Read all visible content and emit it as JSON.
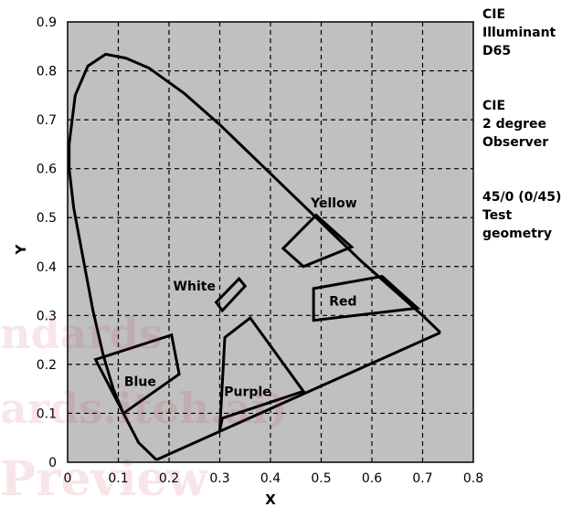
{
  "chart_data": {
    "type": "scatter",
    "title": "",
    "xlabel": "X",
    "ylabel": "Y",
    "xlim": [
      0,
      0.8
    ],
    "ylim": [
      0,
      0.9
    ],
    "xticks": [
      "0",
      "0.1",
      "0.2",
      "0.3",
      "0.4",
      "0.5",
      "0.6",
      "0.7",
      "0.8"
    ],
    "yticks": [
      "0",
      "0.1",
      "0.2",
      "0.3",
      "0.4",
      "0.5",
      "0.6",
      "0.7",
      "0.8",
      "0.9"
    ],
    "grid": true,
    "plot_background": "#c0c0c0",
    "spectrum_locus": [
      [
        0.175,
        0.005
      ],
      [
        0.14,
        0.04
      ],
      [
        0.11,
        0.1
      ],
      [
        0.09,
        0.15
      ],
      [
        0.07,
        0.22
      ],
      [
        0.05,
        0.31
      ],
      [
        0.03,
        0.42
      ],
      [
        0.012,
        0.52
      ],
      [
        0.003,
        0.6
      ],
      [
        0.003,
        0.65
      ],
      [
        0.015,
        0.75
      ],
      [
        0.04,
        0.81
      ],
      [
        0.075,
        0.834
      ],
      [
        0.115,
        0.826
      ],
      [
        0.16,
        0.806
      ],
      [
        0.23,
        0.754
      ],
      [
        0.3,
        0.69
      ],
      [
        0.37,
        0.62
      ],
      [
        0.44,
        0.55
      ],
      [
        0.51,
        0.48
      ],
      [
        0.58,
        0.41
      ],
      [
        0.64,
        0.355
      ],
      [
        0.7,
        0.3
      ],
      [
        0.735,
        0.265
      ]
    ],
    "purple_line": [
      [
        0.735,
        0.265
      ],
      [
        0.175,
        0.005
      ]
    ],
    "regions": [
      {
        "name": "Yellow",
        "points": [
          [
            0.49,
            0.505
          ],
          [
            0.56,
            0.44
          ],
          [
            0.465,
            0.4
          ],
          [
            0.425,
            0.437
          ]
        ],
        "label_at": [
          0.525,
          0.53
        ]
      },
      {
        "name": "White",
        "points": [
          [
            0.305,
            0.31
          ],
          [
            0.35,
            0.36
          ],
          [
            0.338,
            0.375
          ],
          [
            0.293,
            0.327
          ]
        ],
        "label_at": [
          0.25,
          0.36
        ]
      },
      {
        "name": "Red",
        "points": [
          [
            0.485,
            0.355
          ],
          [
            0.62,
            0.38
          ],
          [
            0.69,
            0.315
          ],
          [
            0.485,
            0.29
          ]
        ],
        "label_at": [
          0.543,
          0.33
        ]
      },
      {
        "name": "Blue",
        "points": [
          [
            0.055,
            0.21
          ],
          [
            0.205,
            0.26
          ],
          [
            0.22,
            0.18
          ],
          [
            0.11,
            0.1
          ]
        ],
        "label_at": [
          0.143,
          0.165
        ]
      },
      {
        "name": "Purple",
        "points": [
          [
            0.3,
            0.065
          ],
          [
            0.31,
            0.255
          ],
          [
            0.36,
            0.295
          ],
          [
            0.465,
            0.145
          ],
          [
            0.305,
            0.09
          ]
        ],
        "label_at": [
          0.355,
          0.145
        ]
      }
    ]
  },
  "notes": {
    "illuminant": "CIE\nIlluminant\nD65",
    "observer": "CIE\n2 degree\nObserver",
    "geometry": "45/0 (0/45)\nTest\ngeometry"
  },
  "watermark": {
    "line1": "ndards",
    "line2": "ards.iteh.ai)",
    "line3": "Preview"
  }
}
